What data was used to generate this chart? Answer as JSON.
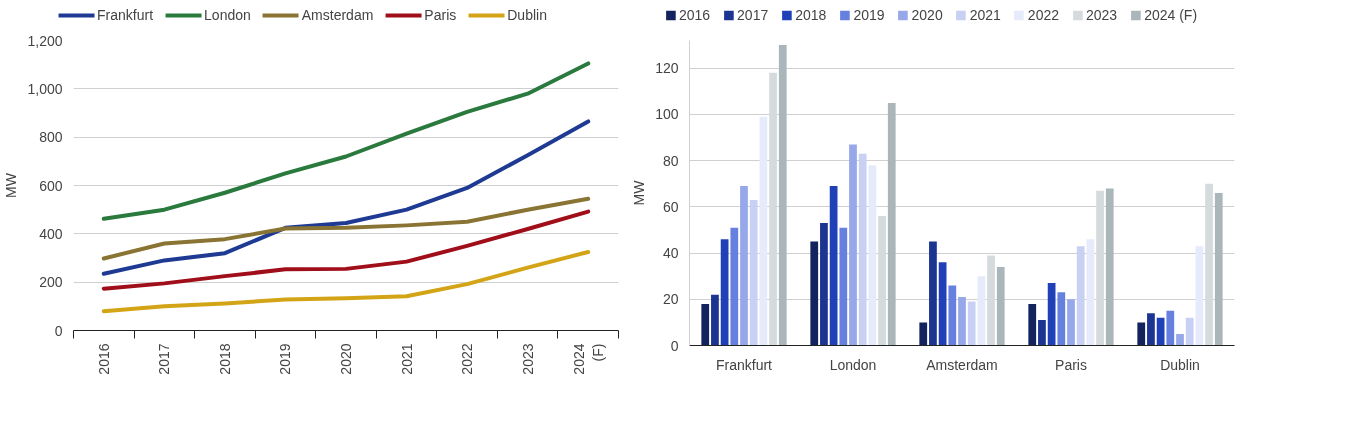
{
  "chart_data": [
    {
      "type": "line",
      "ylabel": "MW",
      "categories": [
        "2016",
        "2017",
        "2018",
        "2019",
        "2020",
        "2021",
        "2022",
        "2023",
        "2024\n(F)"
      ],
      "ylim": [
        0,
        1200
      ],
      "yticks": [
        0,
        {
          "value": 200,
          "label": "200"
        },
        {
          "value": 400,
          "label": "400"
        },
        {
          "value": 600,
          "label": "600"
        },
        {
          "value": 800,
          "label": "800"
        },
        {
          "value": 1000,
          "label": "1,000"
        },
        {
          "value": 1200,
          "label": "1,200"
        }
      ],
      "grid": "y",
      "legend": "top",
      "marker": "none",
      "line_style": "solid",
      "series": [
        {
          "name": "Frankfurt",
          "color": "#1f3a93",
          "values": [
            235,
            290,
            320,
            425,
            445,
            500,
            590,
            725,
            865
          ]
        },
        {
          "name": "London",
          "color": "#2a7a3e",
          "values": [
            462,
            500,
            570,
            650,
            720,
            815,
            905,
            980,
            1105
          ]
        },
        {
          "name": "Amsterdam",
          "color": "#8a7434",
          "values": [
            298,
            360,
            378,
            422,
            425,
            435,
            450,
            500,
            545
          ]
        },
        {
          "name": "Paris",
          "color": "#a00e1a",
          "values": [
            173,
            195,
            225,
            253,
            255,
            285,
            350,
            420,
            492
          ]
        },
        {
          "name": "Dublin",
          "color": "#d4a417",
          "values": [
            80,
            100,
            112,
            128,
            133,
            142,
            192,
            260,
            325
          ]
        }
      ]
    },
    {
      "type": "bar",
      "ylabel": "MW",
      "categories": [
        "Frankfurt",
        "London",
        "Amsterdam",
        "Paris",
        "Dublin"
      ],
      "ylim": [
        0,
        132
      ],
      "yticks": [
        0,
        20,
        40,
        60,
        80,
        100,
        120
      ],
      "grid": "y",
      "legend": "top",
      "series": [
        {
          "name": "2016",
          "color": "#13235e",
          "values": [
            18,
            45,
            10,
            18,
            10
          ]
        },
        {
          "name": "2017",
          "color": "#1b3590",
          "values": [
            22,
            53,
            45,
            11,
            14
          ]
        },
        {
          "name": "2018",
          "color": "#2040b8",
          "values": [
            46,
            69,
            36,
            27,
            12
          ]
        },
        {
          "name": "2019",
          "color": "#6680e0",
          "values": [
            51,
            51,
            26,
            23,
            15
          ]
        },
        {
          "name": "2020",
          "color": "#97a8ea",
          "values": [
            69,
            87,
            21,
            20,
            5
          ]
        },
        {
          "name": "2021",
          "color": "#c8d0f4",
          "values": [
            63,
            83,
            19,
            43,
            12
          ]
        },
        {
          "name": "2022",
          "color": "#e6ebfb",
          "values": [
            99,
            78,
            30,
            46,
            43
          ]
        },
        {
          "name": "2023",
          "color": "#d5dadc",
          "values": [
            118,
            56,
            39,
            67,
            70
          ]
        },
        {
          "name": "2024 (F)",
          "color": "#abb6bb",
          "values": [
            130,
            105,
            34,
            68,
            66
          ]
        }
      ]
    }
  ]
}
